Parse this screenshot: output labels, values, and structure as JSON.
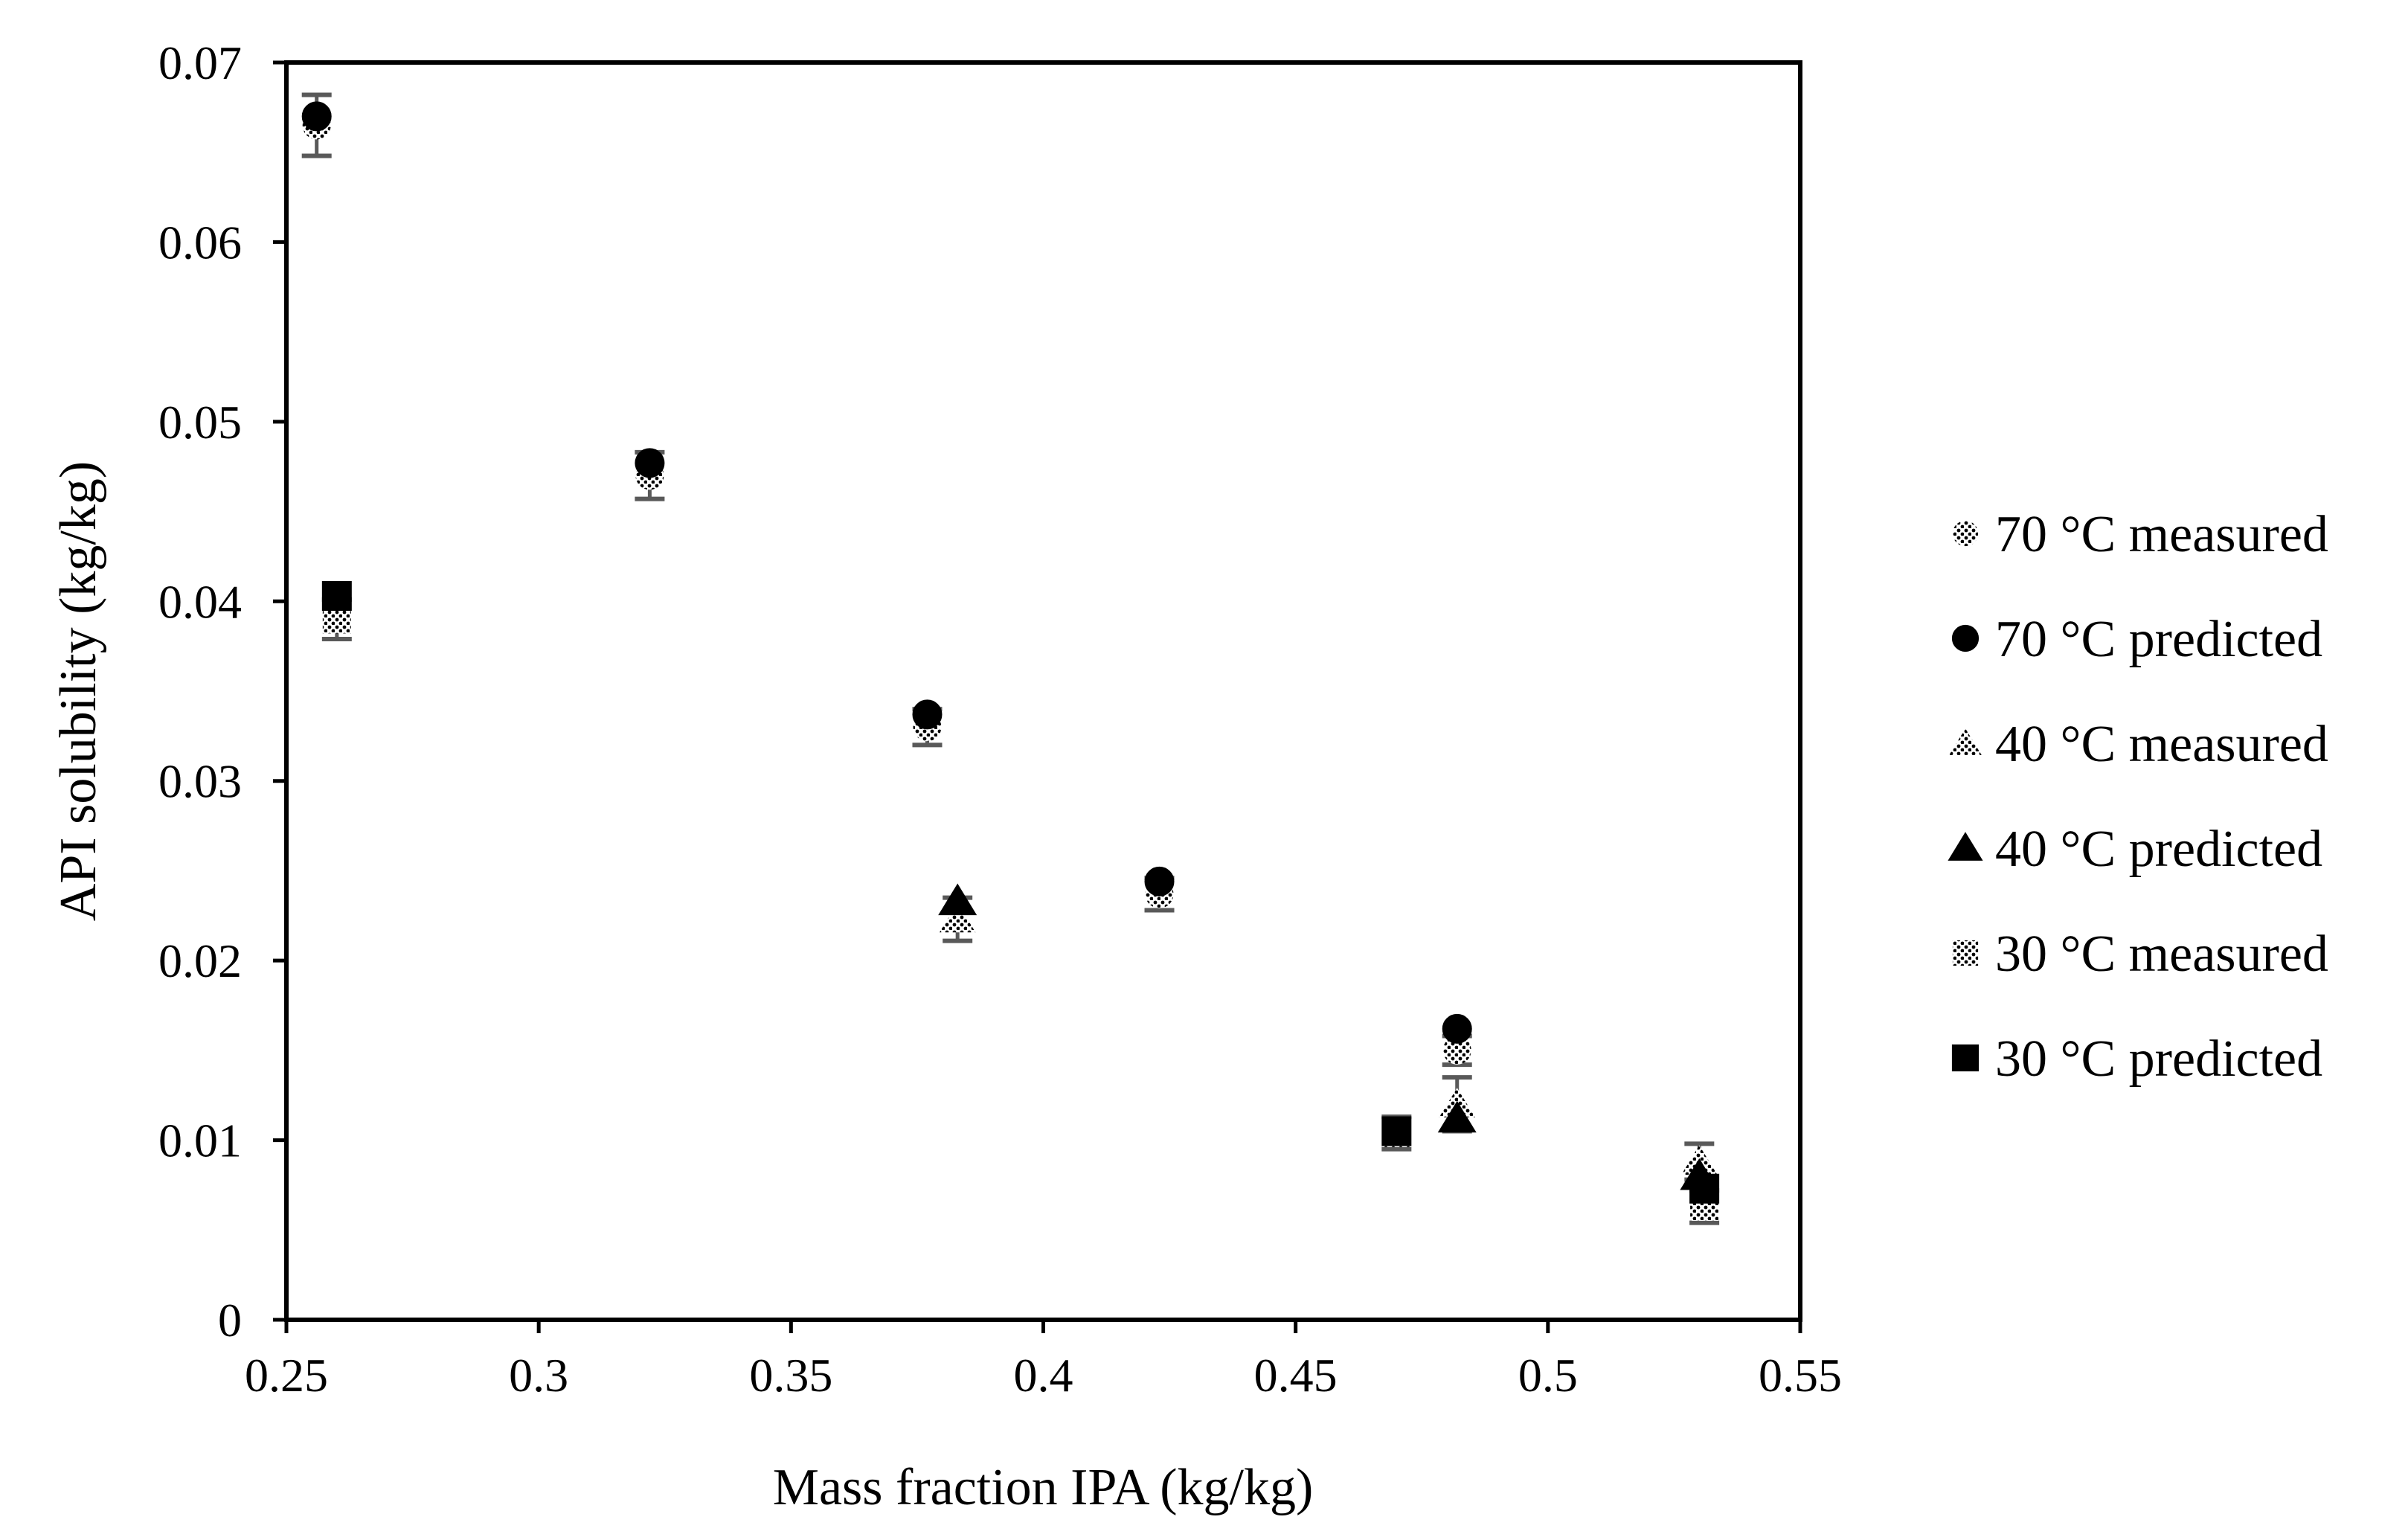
{
  "chart_data": {
    "type": "scatter",
    "title": "",
    "xlabel": "Mass fraction IPA (kg/kg)",
    "ylabel": "API solubility (kg/kg)",
    "xlim": [
      0.25,
      0.55
    ],
    "ylim": [
      0,
      0.07
    ],
    "xticks": [
      0.25,
      0.3,
      0.35,
      0.4,
      0.45,
      0.5,
      0.55
    ],
    "xtick_labels": [
      "0.25",
      "0.3",
      "0.35",
      "0.4",
      "0.45",
      "0.5",
      "0.55"
    ],
    "yticks": [
      0,
      0.01,
      0.02,
      0.03,
      0.04,
      0.05,
      0.06,
      0.07
    ],
    "ytick_labels": [
      "0",
      "0.01",
      "0.02",
      "0.03",
      "0.04",
      "0.05",
      "0.06",
      "0.07"
    ],
    "grid": false,
    "legend_position": "right",
    "series": [
      {
        "name": "70 °C measured",
        "marker": "circle-dotted",
        "x": [
          0.256,
          0.322,
          0.377,
          0.423,
          0.482
        ],
        "y": [
          0.0665,
          0.047,
          0.033,
          0.0237,
          0.015
        ],
        "error": [
          0.0017,
          0.0013,
          0.001,
          0.0009,
          0.0008
        ]
      },
      {
        "name": "70 °C predicted",
        "marker": "circle",
        "x": [
          0.256,
          0.322,
          0.377,
          0.423,
          0.482
        ],
        "y": [
          0.067,
          0.0477,
          0.0337,
          0.0244,
          0.0162
        ]
      },
      {
        "name": "40 °C measured",
        "marker": "triangle-dotted",
        "x": [
          0.383,
          0.482,
          0.53
        ],
        "y": [
          0.0223,
          0.012,
          0.0088
        ],
        "error": [
          0.0012,
          0.0015,
          0.001
        ]
      },
      {
        "name": "40 °C predicted",
        "marker": "triangle",
        "x": [
          0.383,
          0.482,
          0.53
        ],
        "y": [
          0.0233,
          0.0112,
          0.008
        ]
      },
      {
        "name": "30 °C measured",
        "marker": "square-dotted",
        "x": [
          0.26,
          0.47,
          0.531
        ],
        "y": [
          0.039,
          0.0104,
          0.0063
        ],
        "error": [
          0.0011,
          0.0009,
          0.0009
        ]
      },
      {
        "name": "30 °C predicted",
        "marker": "square",
        "x": [
          0.26,
          0.47,
          0.531
        ],
        "y": [
          0.0403,
          0.0105,
          0.0073
        ]
      }
    ]
  },
  "colors": {
    "marker": "#000000",
    "error_bar": "#595959",
    "frame": "#000000"
  }
}
